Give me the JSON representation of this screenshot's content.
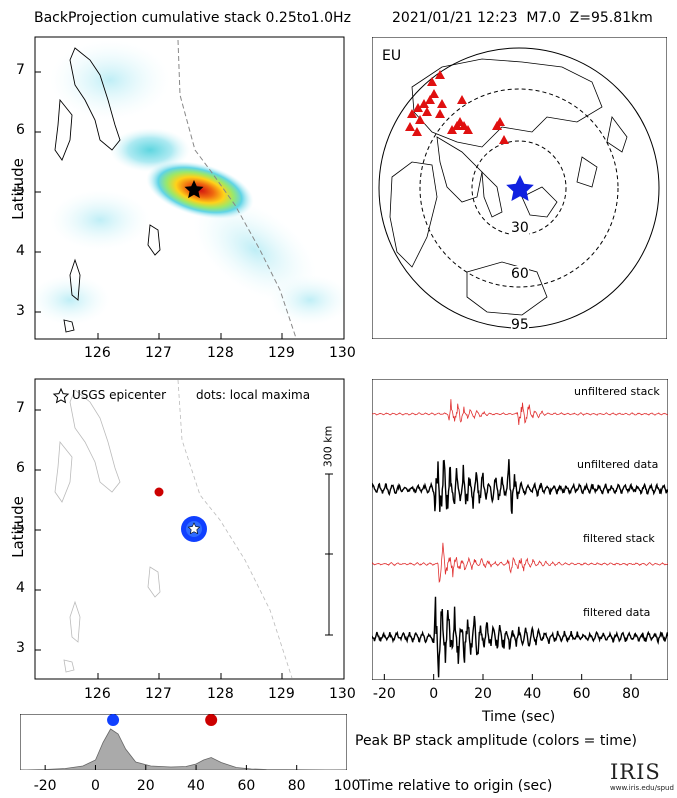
{
  "header": {
    "title": "BackProjection cumulative stack 0.25to1.0Hz",
    "event": "2021/01/21 12:23",
    "magnitude": "M7.0",
    "depth": "Z=95.81km"
  },
  "chart_data": [
    {
      "type": "heatmap",
      "panel": "cumulative stack map",
      "ylabel": "Latitude",
      "xticks": [
        "126",
        "127",
        "128",
        "129",
        "130"
      ],
      "yticks": [
        "7",
        "6",
        "5",
        "4",
        "3"
      ],
      "xlim": [
        125.1,
        130
      ],
      "ylim": [
        2.5,
        7.5
      ],
      "epicenter": {
        "lon": 127.5,
        "lat": 5.02
      },
      "peak": {
        "lon": 127.55,
        "lat": 5.0
      }
    },
    {
      "type": "scatter",
      "panel": "station map",
      "region_label": "EU",
      "rings": [
        "30",
        "60",
        "95"
      ],
      "epicenter_marker": "blue star",
      "stations": "red triangles"
    },
    {
      "type": "scatter",
      "panel": "local maxima map",
      "legend_epicenter": "USGS epicenter",
      "legend_dots": "dots: local maxima",
      "scale_label": "300 km",
      "ylabel": "Latitude",
      "xticks": [
        "126",
        "127",
        "128",
        "129",
        "130"
      ],
      "yticks": [
        "7",
        "6",
        "5",
        "4",
        "3"
      ],
      "points": [
        {
          "lon": 126.9,
          "lat": 5.6,
          "color": "#cc0000"
        },
        {
          "lon": 127.5,
          "lat": 5.02,
          "color": "#1040ff"
        }
      ]
    },
    {
      "type": "line",
      "panel": "seismograms",
      "xlabel": "Time (sec)",
      "xticks": [
        "-20",
        "0",
        "20",
        "40",
        "60",
        "80"
      ],
      "xlim": [
        -25,
        95
      ],
      "traces": [
        "unfiltered stack",
        "unfiltered data",
        "filtered stack",
        "filtered data"
      ]
    },
    {
      "type": "area",
      "panel": "peak BP stack amplitude",
      "caption": "Peak BP stack amplitude (colors = time)",
      "xlabel": "Time relative to origin (sec)",
      "xticks": [
        "-20",
        "0",
        "20",
        "40",
        "60",
        "80",
        "100"
      ],
      "xlim": [
        -30,
        100
      ],
      "x": [
        -30,
        -20,
        -12,
        -5,
        0,
        3,
        6,
        9,
        12,
        16,
        22,
        30,
        36,
        40,
        43,
        46,
        50,
        56,
        62,
        68,
        100
      ],
      "y": [
        0.0,
        0.01,
        0.03,
        0.08,
        0.2,
        0.55,
        0.82,
        0.72,
        0.42,
        0.16,
        0.08,
        0.06,
        0.07,
        0.12,
        0.2,
        0.25,
        0.15,
        0.05,
        0.02,
        0.01,
        0.0
      ],
      "markers": [
        {
          "x": 7,
          "color": "#1040ff"
        },
        {
          "x": 46,
          "color": "#cc0000"
        }
      ]
    }
  ],
  "footer": {
    "logo": "IRIS",
    "url": "www.iris.edu/spud"
  }
}
